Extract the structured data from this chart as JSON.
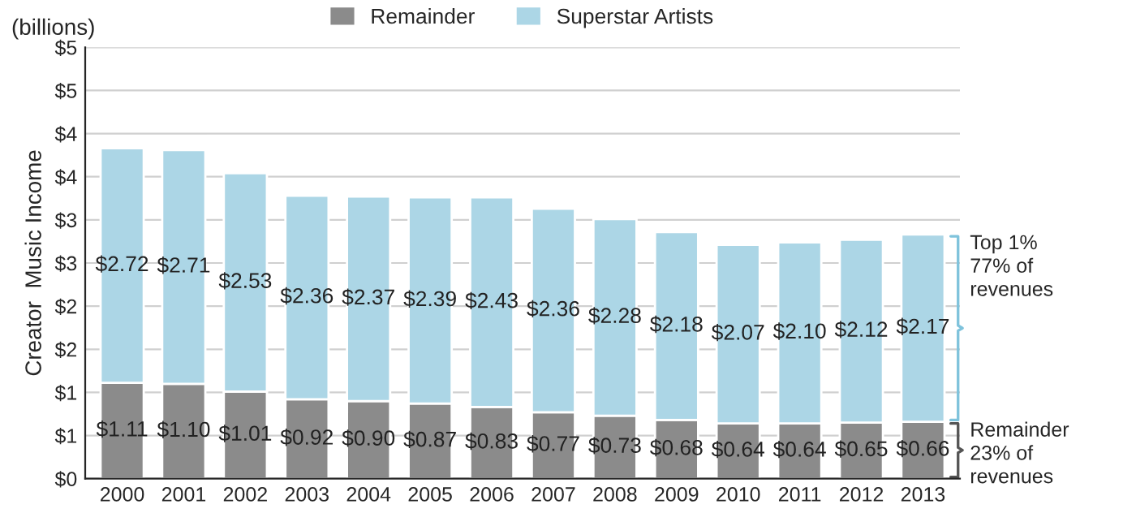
{
  "chart_data": {
    "type": "bar",
    "stacked": true,
    "subtitle": "(billions)",
    "ylabel": "Creator  Music Income",
    "categories": [
      "2000",
      "2001",
      "2002",
      "2003",
      "2004",
      "2005",
      "2006",
      "2007",
      "2008",
      "2009",
      "2010",
      "2011",
      "2012",
      "2013"
    ],
    "series": [
      {
        "name": "Remainder",
        "color": "#8b8b8b",
        "values": [
          1.11,
          1.1,
          1.01,
          0.92,
          0.9,
          0.87,
          0.83,
          0.77,
          0.73,
          0.68,
          0.64,
          0.64,
          0.65,
          0.66
        ],
        "value_labels": [
          "$1.11",
          "$1.10",
          "$1.01",
          "$0.92",
          "$0.90",
          "$0.87",
          "$0.83",
          "$0.77",
          "$0.73",
          "$0.68",
          "$0.64",
          "$0.64",
          "$0.65",
          "$0.66"
        ]
      },
      {
        "name": "Superstar Artists",
        "color": "#acd6e6",
        "values": [
          2.72,
          2.71,
          2.53,
          2.36,
          2.37,
          2.39,
          2.43,
          2.36,
          2.28,
          2.18,
          2.07,
          2.1,
          2.12,
          2.17
        ],
        "value_labels": [
          "$2.72",
          "$2.71",
          "$2.53",
          "$2.36",
          "$2.37",
          "$2.39",
          "$2.43",
          "$2.36",
          "$2.28",
          "$2.18",
          "$2.07",
          "$2.10",
          "$2.12",
          "$2.17"
        ]
      }
    ],
    "ylim": [
      0,
      5
    ],
    "yticks": [
      {
        "value": 0,
        "label": "$0"
      },
      {
        "value": 0.5,
        "label": "$1"
      },
      {
        "value": 1,
        "label": "$1"
      },
      {
        "value": 1.5,
        "label": "$2"
      },
      {
        "value": 2,
        "label": "$2"
      },
      {
        "value": 2.5,
        "label": "$3"
      },
      {
        "value": 3,
        "label": "$3"
      },
      {
        "value": 3.5,
        "label": "$4"
      },
      {
        "value": 4,
        "label": "$4"
      },
      {
        "value": 4.5,
        "label": "$5"
      },
      {
        "value": 5,
        "label": "$5"
      }
    ],
    "grid": "y",
    "legend": "top",
    "annotations": [
      {
        "text": "Top 1%\n77% of\nrevenues",
        "x": "2013",
        "y": 2.83
      },
      {
        "text": "Remainder\n23% of\nrevenues",
        "x": "2013",
        "y": 0.66
      }
    ]
  }
}
